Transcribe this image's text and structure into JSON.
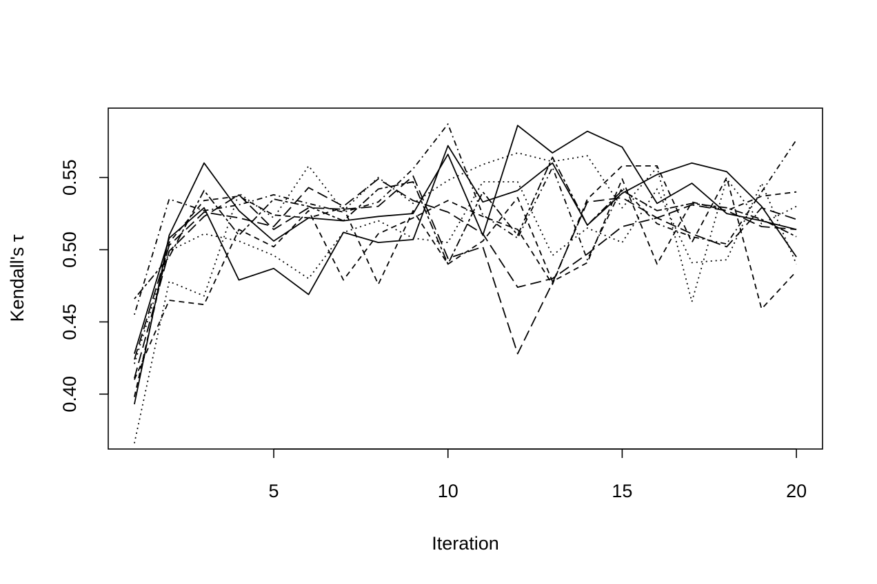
{
  "chart_data": {
    "type": "line",
    "title": "",
    "xlabel": "Iteration",
    "ylabel": "Kendall's τ",
    "xlim": [
      0.25,
      20.75
    ],
    "ylim": [
      0.362,
      0.598
    ],
    "xticks": [
      5,
      10,
      15,
      20
    ],
    "yticks": [
      0.4,
      0.45,
      0.5,
      0.55
    ],
    "xtick_labels": [
      "5",
      "10",
      "15",
      "20"
    ],
    "ytick_labels": [
      "0.40",
      "0.45",
      "0.50",
      "0.55"
    ],
    "grid": false,
    "legend": "none",
    "x": [
      1,
      2,
      3,
      4,
      5,
      6,
      7,
      8,
      9,
      10,
      11,
      12,
      13,
      14,
      15,
      16,
      17,
      18,
      19,
      20
    ],
    "series": [
      {
        "dash": "solid",
        "values": [
          0.393,
          0.51,
          0.56,
          0.527,
          0.506,
          0.522,
          0.52,
          0.523,
          0.525,
          0.566,
          0.51,
          0.586,
          0.567,
          0.582,
          0.571,
          0.532,
          0.546,
          0.525,
          0.52,
          0.514
        ]
      },
      {
        "dash": "solid",
        "values": [
          0.428,
          0.508,
          0.529,
          0.479,
          0.487,
          0.469,
          0.512,
          0.505,
          0.507,
          0.572,
          0.533,
          0.541,
          0.56,
          0.517,
          0.539,
          0.552,
          0.56,
          0.554,
          0.53,
          0.495
        ]
      },
      {
        "dash": "dotted",
        "values": [
          0.366,
          0.478,
          0.468,
          0.539,
          0.522,
          0.558,
          0.527,
          0.55,
          0.532,
          0.548,
          0.559,
          0.567,
          0.561,
          0.565,
          0.529,
          0.557,
          0.464,
          0.549,
          0.518,
          0.53
        ]
      },
      {
        "dash": "dotted",
        "values": [
          0.421,
          0.499,
          0.511,
          0.506,
          0.496,
          0.48,
          0.512,
          0.52,
          0.508,
          0.505,
          0.547,
          0.547,
          0.496,
          0.515,
          0.505,
          0.542,
          0.491,
          0.493,
          0.546,
          0.49
        ]
      },
      {
        "dash": "dashed",
        "values": [
          0.41,
          0.465,
          0.462,
          0.514,
          0.502,
          0.527,
          0.479,
          0.511,
          0.522,
          0.534,
          0.523,
          0.514,
          0.476,
          0.535,
          0.558,
          0.558,
          0.505,
          0.55,
          0.459,
          0.485
        ]
      },
      {
        "dash": "dashed",
        "values": [
          0.398,
          0.505,
          0.534,
          0.537,
          0.524,
          0.522,
          0.529,
          0.476,
          0.527,
          0.49,
          0.506,
          0.536,
          0.478,
          0.491,
          0.549,
          0.49,
          0.533,
          0.527,
          0.537,
          0.54
        ]
      },
      {
        "dash": "longdash",
        "values": [
          0.411,
          0.499,
          0.523,
          0.538,
          0.514,
          0.529,
          0.528,
          0.53,
          0.551,
          0.494,
          0.502,
          0.428,
          0.477,
          0.533,
          0.536,
          0.522,
          0.511,
          0.502,
          0.529,
          0.521
        ]
      },
      {
        "dash": "longdash",
        "values": [
          0.424,
          0.503,
          0.526,
          0.522,
          0.516,
          0.543,
          0.53,
          0.549,
          0.534,
          0.526,
          0.511,
          0.474,
          0.48,
          0.497,
          0.516,
          0.522,
          0.531,
          0.527,
          0.516,
          0.514
        ]
      },
      {
        "dash": "dotdash",
        "values": [
          0.455,
          0.535,
          0.527,
          0.531,
          0.538,
          0.532,
          0.526,
          0.533,
          0.556,
          0.587,
          0.524,
          0.508,
          0.557,
          0.493,
          0.543,
          0.518,
          0.509,
          0.504,
          0.54,
          0.576
        ]
      },
      {
        "dash": "twodash",
        "values": [
          0.466,
          0.495,
          0.541,
          0.51,
          0.535,
          0.53,
          0.52,
          0.542,
          0.547,
          0.49,
          0.54,
          0.51,
          0.564,
          0.517,
          0.541,
          0.527,
          0.532,
          0.529,
          0.521,
          0.509
        ]
      }
    ]
  }
}
